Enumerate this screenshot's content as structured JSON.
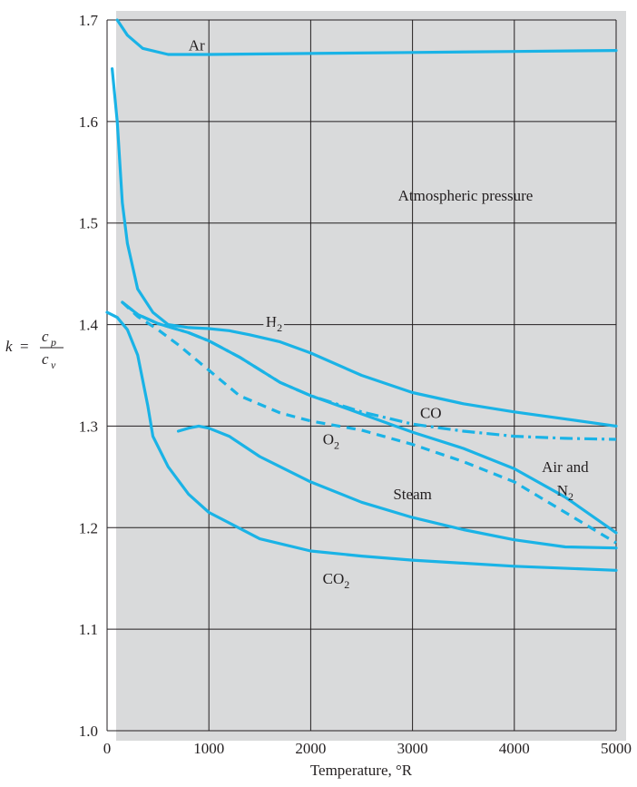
{
  "chart_data": {
    "type": "line",
    "title": "",
    "annotation": "Atmospheric pressure",
    "xlabel": "Temperature, °R",
    "ylabel": {
      "k": "k",
      "eq": "=",
      "num": "c",
      "num_sub": "p",
      "den": "c",
      "den_sub": "v"
    },
    "xlim": [
      0,
      5000
    ],
    "ylim": [
      1.0,
      1.7
    ],
    "xticks": [
      "0",
      "1000",
      "2000",
      "3000",
      "4000",
      "5000"
    ],
    "yticks": [
      "1.0",
      "1.1",
      "1.2",
      "1.3",
      "1.4",
      "1.5",
      "1.6",
      "1.7"
    ],
    "grid": true,
    "line_color": "#1ab3e6",
    "panel_color": "#d9dadb",
    "series": [
      {
        "name": "Ar",
        "style": "solid",
        "label_x": 880,
        "label_y": 1.67,
        "points": [
          [
            100,
            1.7
          ],
          [
            200,
            1.685
          ],
          [
            350,
            1.672
          ],
          [
            600,
            1.666
          ],
          [
            1000,
            1.666
          ],
          [
            2000,
            1.667
          ],
          [
            3000,
            1.668
          ],
          [
            4000,
            1.669
          ],
          [
            5000,
            1.67
          ]
        ]
      },
      {
        "name": "H",
        "sub": "2",
        "style": "solid",
        "label_x": 1640,
        "label_y": 1.398,
        "points": [
          [
            50,
            1.652
          ],
          [
            100,
            1.6
          ],
          [
            150,
            1.52
          ],
          [
            200,
            1.48
          ],
          [
            300,
            1.435
          ],
          [
            450,
            1.412
          ],
          [
            600,
            1.4
          ],
          [
            800,
            1.397
          ],
          [
            1000,
            1.396
          ],
          [
            1200,
            1.394
          ],
          [
            1400,
            1.39
          ],
          [
            1700,
            1.383
          ],
          [
            2000,
            1.372
          ],
          [
            2500,
            1.35
          ],
          [
            3000,
            1.333
          ],
          [
            3500,
            1.322
          ],
          [
            4000,
            1.314
          ],
          [
            4500,
            1.307
          ],
          [
            5000,
            1.3
          ]
        ]
      },
      {
        "name": "CO",
        "style": "dashdot",
        "label_x": 3180,
        "label_y": 1.308,
        "points": [
          [
            150,
            1.422
          ],
          [
            300,
            1.41
          ],
          [
            500,
            1.401
          ],
          [
            800,
            1.392
          ],
          [
            1000,
            1.384
          ],
          [
            1300,
            1.368
          ],
          [
            1700,
            1.343
          ],
          [
            2000,
            1.33
          ],
          [
            2500,
            1.314
          ],
          [
            3000,
            1.302
          ],
          [
            3500,
            1.295
          ],
          [
            4000,
            1.29
          ],
          [
            4500,
            1.288
          ],
          [
            5000,
            1.287
          ]
        ]
      },
      {
        "name": "O",
        "sub": "2",
        "style": "dashed",
        "label_x": 2200,
        "label_y": 1.282,
        "points": [
          [
            150,
            1.422
          ],
          [
            300,
            1.408
          ],
          [
            500,
            1.395
          ],
          [
            700,
            1.38
          ],
          [
            1000,
            1.355
          ],
          [
            1300,
            1.33
          ],
          [
            1700,
            1.313
          ],
          [
            2000,
            1.305
          ],
          [
            2500,
            1.296
          ],
          [
            3000,
            1.282
          ],
          [
            3500,
            1.265
          ],
          [
            4000,
            1.245
          ],
          [
            4500,
            1.215
          ],
          [
            5000,
            1.185
          ]
        ]
      },
      {
        "name": "Air and",
        "line2": "N",
        "sub": "2",
        "style": "solid",
        "label_x": 4500,
        "label_y": 1.255,
        "points": [
          [
            150,
            1.422
          ],
          [
            300,
            1.41
          ],
          [
            500,
            1.401
          ],
          [
            800,
            1.392
          ],
          [
            1000,
            1.384
          ],
          [
            1300,
            1.368
          ],
          [
            1700,
            1.343
          ],
          [
            2000,
            1.33
          ],
          [
            2500,
            1.312
          ],
          [
            3000,
            1.294
          ],
          [
            3500,
            1.278
          ],
          [
            4000,
            1.258
          ],
          [
            4500,
            1.23
          ],
          [
            5000,
            1.195
          ]
        ]
      },
      {
        "name": "Steam",
        "style": "solid",
        "label_x": 3000,
        "label_y": 1.228,
        "points": [
          [
            700,
            1.295
          ],
          [
            800,
            1.298
          ],
          [
            900,
            1.3
          ],
          [
            1000,
            1.298
          ],
          [
            1200,
            1.29
          ],
          [
            1500,
            1.27
          ],
          [
            2000,
            1.245
          ],
          [
            2500,
            1.225
          ],
          [
            3000,
            1.21
          ],
          [
            3500,
            1.198
          ],
          [
            4000,
            1.188
          ],
          [
            4500,
            1.181
          ],
          [
            5000,
            1.18
          ]
        ]
      },
      {
        "name": "CO",
        "sub": "2",
        "style": "solid",
        "label_x": 2250,
        "label_y": 1.145,
        "points": [
          [
            0,
            1.412
          ],
          [
            100,
            1.407
          ],
          [
            200,
            1.395
          ],
          [
            300,
            1.37
          ],
          [
            400,
            1.32
          ],
          [
            450,
            1.29
          ],
          [
            600,
            1.26
          ],
          [
            800,
            1.233
          ],
          [
            1000,
            1.215
          ],
          [
            1500,
            1.189
          ],
          [
            2000,
            1.177
          ],
          [
            2500,
            1.172
          ],
          [
            3000,
            1.168
          ],
          [
            4000,
            1.162
          ],
          [
            5000,
            1.158
          ]
        ]
      }
    ]
  }
}
